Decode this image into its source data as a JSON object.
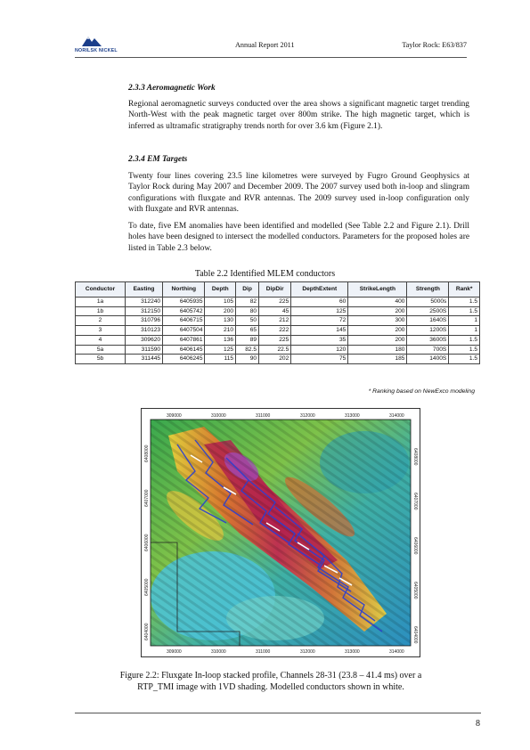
{
  "header": {
    "logo_text": "NORILSK NICKEL",
    "center": "Annual  Report 2011",
    "right": "Taylor Rock: E63/837"
  },
  "sections": [
    {
      "heading": "2.3.3  Aeromagnetic Work",
      "paragraphs": [
        "Regional aeromagnetic surveys conducted over the area shows a significant magnetic target trending North-West with the peak magnetic target over 800m strike. The high magnetic target, which is inferred as ultramafic stratigraphy trends north for over 3.6 km (Figure 2.1)."
      ]
    },
    {
      "heading": "2.3.4  EM Targets",
      "paragraphs": [
        "Twenty four lines covering 23.5 line kilometres were surveyed by Fugro Ground Geophysics at Taylor Rock during May 2007 and December 2009. The 2007 survey used both in-loop and slingram configurations with fluxgate and RVR antennas. The 2009 survey used in-loop configuration only with fluxgate and RVR antennas.",
        "To date, five EM anomalies have been identified and modelled (See Table 2.2 and Figure 2.1). Drill holes have been designed to intersect the modelled conductors. Parameters for the proposed holes are listed in Table 2.3 below."
      ]
    }
  ],
  "table": {
    "caption": "Table 2.2 Identified MLEM conductors",
    "columns": [
      "Conductor",
      "Easting",
      "Northing",
      "Depth",
      "Dip",
      "DipDir",
      "DepthExtent",
      "StrikeLength",
      "Strength",
      "Rank*"
    ],
    "rows": [
      [
        "1a",
        "312240",
        "6405935",
        "105",
        "82",
        "225",
        "60",
        "400",
        "5000s",
        "1.5"
      ],
      [
        "1b",
        "312150",
        "6405742",
        "200",
        "80",
        "45",
        "125",
        "200",
        "2500S",
        "1.5"
      ],
      [
        "2",
        "310796",
        "6406715",
        "130",
        "50",
        "212",
        "72",
        "300",
        "1640S",
        "1"
      ],
      [
        "3",
        "310123",
        "6407504",
        "210",
        "65",
        "222",
        "145",
        "200",
        "1200S",
        "1"
      ],
      [
        "4",
        "309620",
        "6407861",
        "136",
        "89",
        "225",
        "35",
        "200",
        "3600S",
        "1.5"
      ],
      [
        "5a",
        "311590",
        "6406145",
        "125",
        "82.5",
        "22.5",
        "120",
        "180",
        "700S",
        "1.5"
      ],
      [
        "5b",
        "311445",
        "6406245",
        "115",
        "90",
        "202",
        "75",
        "185",
        "1400S",
        "1.5"
      ]
    ],
    "note": "* Ranking based on NewExco modeling"
  },
  "figure": {
    "top_ticks": [
      "309000",
      "310000",
      "311000",
      "312000",
      "313000",
      "314000"
    ],
    "bottom_ticks": [
      "309000",
      "310000",
      "311000",
      "312000",
      "313000",
      "314000"
    ],
    "left_ticks": [
      "6408000",
      "6407000",
      "6406000",
      "6405000",
      "6404000"
    ],
    "right_ticks": [
      "6408000",
      "6407000",
      "6406000",
      "6405000",
      "6404000"
    ],
    "caption_line1": "Figure 2.2:  Fluxgate In-loop stacked profile, Channels 28-31 (23.8 – 41.4 ms) over a",
    "caption_line2": "RTP_TMI image with 1VD shading. Modelled conductors shown in white."
  },
  "page_number": "8"
}
